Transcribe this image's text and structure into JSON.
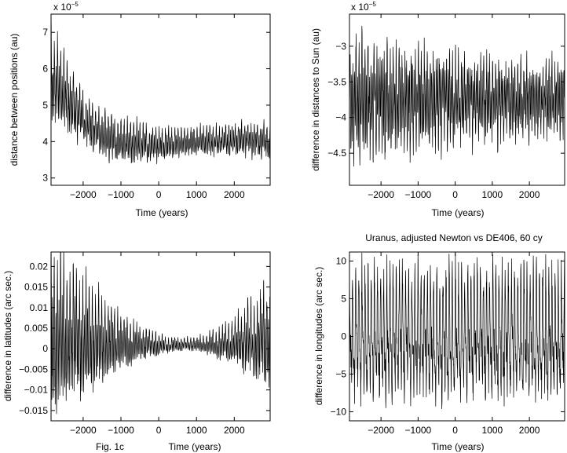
{
  "figure": {
    "caption_left": "Fig. 1c"
  },
  "chart_data": [
    {
      "type": "line",
      "title": "",
      "xlabel": "Time (years)",
      "ylabel": "distance between positions (au)",
      "exponent_label": "x 10",
      "exponent_power": "−5",
      "xlim": [
        -2850,
        2950
      ],
      "ylim": [
        2.8,
        7.5
      ],
      "xticks": [
        -2000,
        -1000,
        0,
        1000,
        2000
      ],
      "xtick_labels": [
        "−2000",
        "−1000",
        "0",
        "1000",
        "2000"
      ],
      "yticks": [
        3,
        4,
        5,
        6,
        7
      ],
      "ytick_labels": [
        "3",
        "4",
        "5",
        "6",
        "7"
      ],
      "series": [
        {
          "envelope": {
            "x": [
              -2850,
              -2500,
              -2000,
              -1500,
              -1000,
              -500,
              0,
              500,
              1000,
              1500,
              2000,
              2500,
              2950
            ],
            "center": [
              5.8,
              5.3,
              4.6,
              4.2,
              4.0,
              3.95,
              3.9,
              3.95,
              4.0,
              4.0,
              4.05,
              4.05,
              4.0
            ],
            "amplitude": [
              1.35,
              1.1,
              0.8,
              0.7,
              0.7,
              0.6,
              0.5,
              0.45,
              0.45,
              0.45,
              0.5,
              0.55,
              0.6
            ]
          }
        }
      ]
    },
    {
      "type": "line",
      "title": "",
      "xlabel": "Time (years)",
      "ylabel": "difference in distances to Sun (au)",
      "exponent_label": "x 10",
      "exponent_power": "−5",
      "xlim": [
        -2850,
        2950
      ],
      "ylim": [
        -4.95,
        -2.55
      ],
      "xticks": [
        -2000,
        -1000,
        0,
        1000,
        2000
      ],
      "xtick_labels": [
        "−2000",
        "−1000",
        "0",
        "1000",
        "2000"
      ],
      "yticks": [
        -4.5,
        -4,
        -3.5,
        -3
      ],
      "ytick_labels": [
        "−4.5",
        "−4",
        "−3.5",
        "−3"
      ],
      "series": [
        {
          "envelope": {
            "x": [
              -2850,
              -2000,
              -1000,
              0,
              1000,
              2000,
              2950
            ],
            "center": [
              -3.75,
              -3.75,
              -3.75,
              -3.75,
              -3.75,
              -3.75,
              -3.75
            ],
            "amplitude": [
              0.95,
              0.85,
              0.8,
              0.7,
              0.65,
              0.6,
              0.6
            ]
          }
        }
      ]
    },
    {
      "type": "line",
      "title": "",
      "xlabel": "Time (years)",
      "ylabel": "difference in latitudes (arc sec.)",
      "xlim": [
        -2850,
        2950
      ],
      "ylim": [
        -0.0175,
        0.0235
      ],
      "xticks": [
        -2000,
        -1000,
        0,
        1000,
        2000
      ],
      "xtick_labels": [
        "−2000",
        "−1000",
        "0",
        "1000",
        "2000"
      ],
      "yticks": [
        -0.015,
        -0.01,
        -0.005,
        0,
        0.005,
        0.01,
        0.015,
        0.02
      ],
      "ytick_labels": [
        "−0.015",
        "−0.01",
        "−0.005",
        "0",
        "0.005",
        "0.01",
        "0.015",
        "0.02"
      ],
      "series": [
        {
          "envelope": {
            "x": [
              -2850,
              -2500,
              -2000,
              -1500,
              -1000,
              -500,
              0,
              500,
              1000,
              1500,
              2000,
              2500,
              2950
            ],
            "center": [
              0.003,
              0.0025,
              0.002,
              0.0015,
              0.0012,
              0.001,
              0.0008,
              0.001,
              0.001,
              0.001,
              0.0012,
              0.002,
              0.002
            ],
            "amplitude": [
              0.021,
              0.019,
              0.016,
              0.012,
              0.008,
              0.005,
              0.003,
              0.0018,
              0.002,
              0.004,
              0.006,
              0.011,
              0.014
            ]
          }
        }
      ]
    },
    {
      "type": "line",
      "title": "Uranus, adjusted Newton vs DE406, 60 cy",
      "xlabel": "Time (years)",
      "ylabel": "difference in longitudes (arc sec.)",
      "xlim": [
        -2850,
        2950
      ],
      "ylim": [
        -11.2,
        11.2
      ],
      "xticks": [
        -2000,
        -1000,
        0,
        1000,
        2000
      ],
      "xtick_labels": [
        "−2000",
        "−1000",
        "0",
        "1000",
        "2000"
      ],
      "yticks": [
        -10,
        -5,
        0,
        5,
        10
      ],
      "ytick_labels": [
        "−10",
        "−5",
        "0",
        "5",
        "10"
      ],
      "series": [
        {
          "envelope": {
            "x": [
              -2850,
              -2000,
              -1000,
              0,
              1000,
              2000,
              2950
            ],
            "center": [
              0,
              0,
              0,
              0,
              0,
              0,
              0
            ],
            "amplitude": [
              10,
              10,
              10,
              10,
              10,
              10,
              10
            ]
          }
        }
      ]
    }
  ]
}
